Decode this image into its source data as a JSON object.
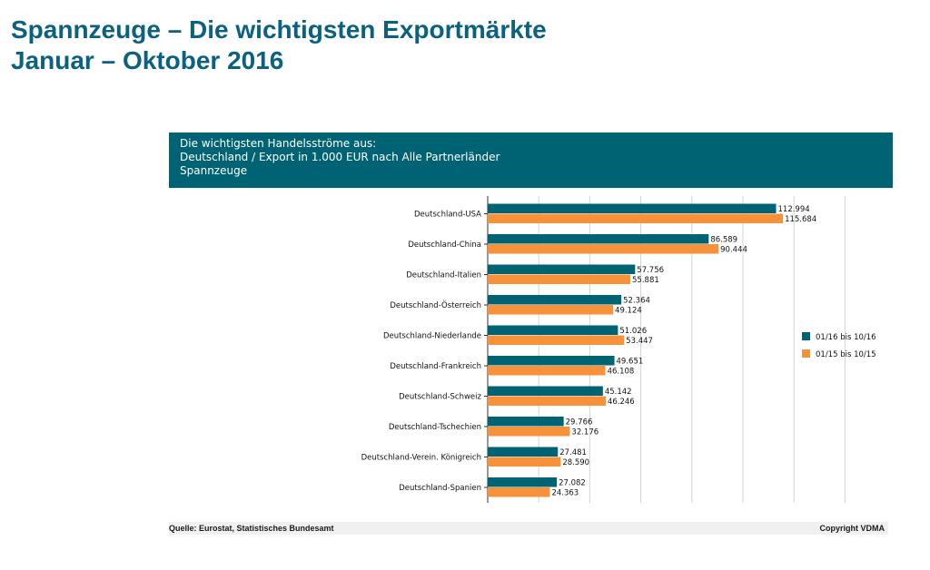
{
  "slide": {
    "title_line1": "Spannzeuge – Die wichtigsten Exportmärkte",
    "title_line2": "Januar – Oktober 2016"
  },
  "chart_header": {
    "line1": "Die wichtigsten Handelsströme aus:",
    "line2": "Deutschland / Export in 1.000 EUR nach Alle Partnerländer",
    "line3": "Spannzeuge"
  },
  "footer": {
    "source": "Quelle: Eurostat, Statistisches Bundesamt",
    "copyright": "Copyright VDMA"
  },
  "chart_data": {
    "type": "bar",
    "orientation": "horizontal",
    "categories": [
      "Deutschland-USA",
      "Deutschland-China",
      "Deutschland-Italien",
      "Deutschland-Österreich",
      "Deutschland-Niederlande",
      "Deutschland-Frankreich",
      "Deutschland-Schweiz",
      "Deutschland-Tschechien",
      "Deutschland-Verein. Königreich",
      "Deutschland-Spanien"
    ],
    "series": [
      {
        "name": "01/16 bis 10/16",
        "color": "#006373",
        "values": [
          112994,
          86589,
          57756,
          52364,
          51026,
          49651,
          45142,
          29766,
          27481,
          27082
        ],
        "labels": [
          "112.994",
          "86.589",
          "57.756",
          "52.364",
          "51.026",
          "49.651",
          "45.142",
          "29.766",
          "27.481",
          "27.082"
        ]
      },
      {
        "name": "01/15 bis 10/15",
        "color": "#f7923a",
        "values": [
          115684,
          90444,
          55881,
          49124,
          53447,
          46108,
          46246,
          32176,
          28590,
          24363
        ],
        "labels": [
          "115.684",
          "90.444",
          "55.881",
          "49.124",
          "53.447",
          "46.108",
          "46.246",
          "32.176",
          "28.590",
          "24.363"
        ]
      }
    ],
    "xlim": [
      0,
      140000
    ],
    "grid": true,
    "legend_position": "right"
  }
}
